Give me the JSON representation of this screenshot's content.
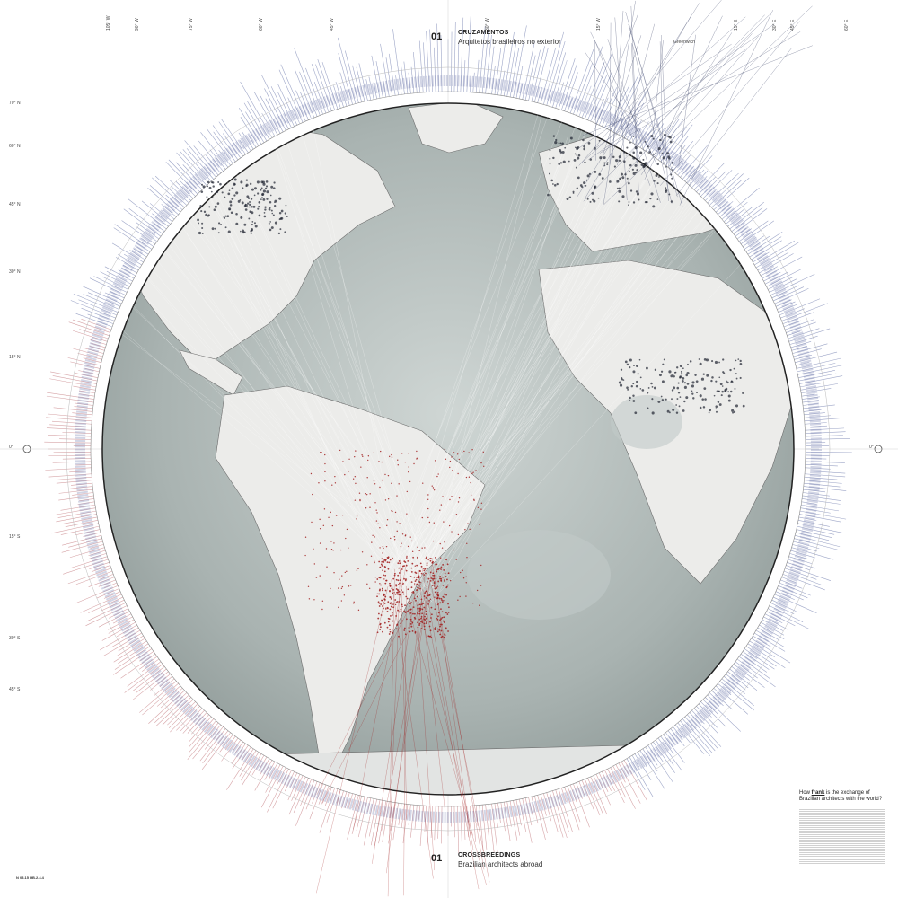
{
  "map": {
    "title_top": {
      "number": "01",
      "title": "CRUZAMENTOS",
      "subtitle": "Arquitetos brasileiros no exterior"
    },
    "title_bottom": {
      "number": "01",
      "title": "CROSSBREEDINGS",
      "subtitle": "Brazilian architects abroad"
    },
    "question": {
      "pre": "How ",
      "emph": "frank",
      "post": " is the exchange of Brazilian architects with the world?"
    },
    "latitude_labels": [
      "70° N",
      "60° N",
      "45° N",
      "30° N",
      "15° N",
      "0°",
      "15° S",
      "30° S",
      "45° S"
    ],
    "longitude_labels": [
      "105° W",
      "90° W",
      "75° W",
      "60° W",
      "45° W",
      "30° W",
      "15° W",
      "Greenwich",
      "15° E",
      "30° E",
      "45° E",
      "60° E"
    ],
    "equator_right_label": "0°",
    "legend_code": "N 03.15 HB.2.4.4",
    "colors": {
      "ocean": "#a9b3b1",
      "land": "#ececea",
      "abroad_lines": "#4a5273",
      "brazil_points": "#a11d1d",
      "ring_blue": "#7d88b5",
      "ring_red": "#c9868a"
    }
  }
}
